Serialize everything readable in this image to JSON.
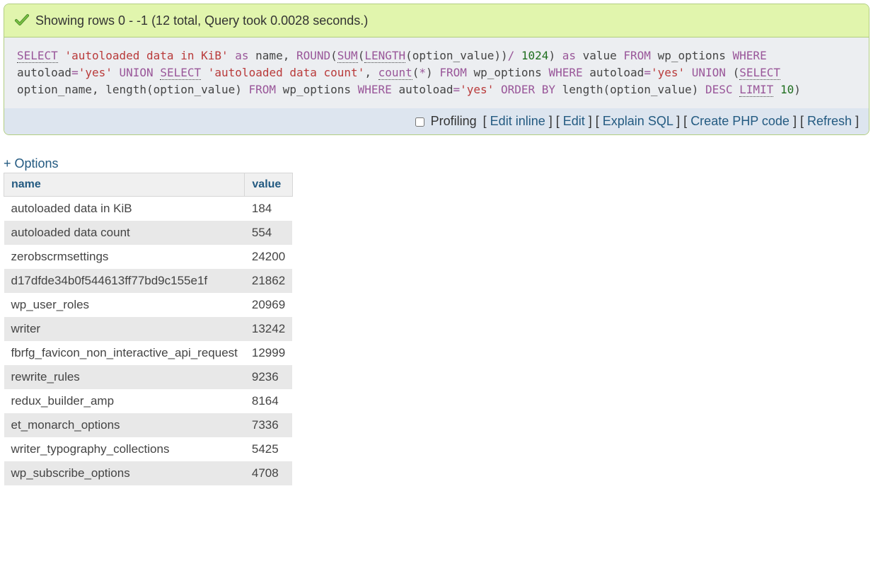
{
  "banner": {
    "text": "Showing rows 0 - -1 (12 total, Query took 0.0028 seconds.)"
  },
  "sql": {
    "tokens": [
      {
        "t": "func",
        "v": "SELECT"
      },
      {
        "t": "",
        "v": " "
      },
      {
        "t": "str",
        "v": "'autoloaded data in KiB'"
      },
      {
        "t": "",
        "v": " "
      },
      {
        "t": "kw",
        "v": "as"
      },
      {
        "t": "",
        "v": " name, "
      },
      {
        "t": "kw",
        "v": "ROUND"
      },
      {
        "t": "",
        "v": "("
      },
      {
        "t": "func",
        "v": "SUM"
      },
      {
        "t": "",
        "v": "("
      },
      {
        "t": "func",
        "v": "LENGTH"
      },
      {
        "t": "",
        "v": "(option_value))"
      },
      {
        "t": "kw",
        "v": "/"
      },
      {
        "t": "",
        "v": " "
      },
      {
        "t": "col",
        "v": "1024"
      },
      {
        "t": "",
        "v": ") "
      },
      {
        "t": "kw",
        "v": "as"
      },
      {
        "t": "",
        "v": " value "
      },
      {
        "t": "kw",
        "v": "FROM"
      },
      {
        "t": "",
        "v": " wp_options "
      },
      {
        "t": "kw",
        "v": "WHERE"
      },
      {
        "t": "",
        "v": " autoload"
      },
      {
        "t": "kw",
        "v": "="
      },
      {
        "t": "str",
        "v": "'yes'"
      },
      {
        "t": "",
        "v": " "
      },
      {
        "t": "kw",
        "v": "UNION"
      },
      {
        "t": "",
        "v": " "
      },
      {
        "t": "func",
        "v": "SELECT"
      },
      {
        "t": "",
        "v": " "
      },
      {
        "t": "str",
        "v": "'autoloaded data count'"
      },
      {
        "t": "",
        "v": ", "
      },
      {
        "t": "func",
        "v": "count"
      },
      {
        "t": "",
        "v": "("
      },
      {
        "t": "kw",
        "v": "*"
      },
      {
        "t": "",
        "v": ") "
      },
      {
        "t": "kw",
        "v": "FROM"
      },
      {
        "t": "",
        "v": " wp_options "
      },
      {
        "t": "kw",
        "v": "WHERE"
      },
      {
        "t": "",
        "v": " autoload"
      },
      {
        "t": "kw",
        "v": "="
      },
      {
        "t": "str",
        "v": "'yes'"
      },
      {
        "t": "",
        "v": " "
      },
      {
        "t": "kw",
        "v": "UNION"
      },
      {
        "t": "",
        "v": " ("
      },
      {
        "t": "func",
        "v": "SELECT"
      },
      {
        "t": "",
        "v": " option_name, length(option_value) "
      },
      {
        "t": "kw",
        "v": "FROM"
      },
      {
        "t": "",
        "v": " wp_options "
      },
      {
        "t": "kw",
        "v": "WHERE"
      },
      {
        "t": "",
        "v": " autoload"
      },
      {
        "t": "kw",
        "v": "="
      },
      {
        "t": "str",
        "v": "'yes'"
      },
      {
        "t": "",
        "v": " "
      },
      {
        "t": "kw",
        "v": "ORDER BY"
      },
      {
        "t": "",
        "v": " length(option_value) "
      },
      {
        "t": "kw",
        "v": "DESC"
      },
      {
        "t": "",
        "v": " "
      },
      {
        "t": "func",
        "v": "LIMIT"
      },
      {
        "t": "",
        "v": " "
      },
      {
        "t": "col",
        "v": "10"
      },
      {
        "t": "",
        "v": ")"
      }
    ]
  },
  "toolbar": {
    "profiling_label": "Profiling",
    "links": {
      "edit_inline": "Edit inline",
      "edit": "Edit",
      "explain": "Explain SQL",
      "create_php": "Create PHP code",
      "refresh": "Refresh"
    }
  },
  "options_link": "+ Options",
  "table": {
    "columns": [
      "name",
      "value"
    ],
    "rows": [
      [
        "autoloaded data in KiB",
        "184"
      ],
      [
        "autoloaded data count",
        "554"
      ],
      [
        "zerobscrmsettings",
        "24200"
      ],
      [
        "d17dfde34b0f544613ff77bd9c155e1f",
        "21862"
      ],
      [
        "wp_user_roles",
        "20969"
      ],
      [
        "writer",
        "13242"
      ],
      [
        "fbrfg_favicon_non_interactive_api_request",
        "12999"
      ],
      [
        "rewrite_rules",
        "9236"
      ],
      [
        "redux_builder_amp",
        "8164"
      ],
      [
        "et_monarch_options",
        "7336"
      ],
      [
        "writer_typography_collections",
        "5425"
      ],
      [
        "wp_subscribe_options",
        "4708"
      ]
    ]
  },
  "colors": {
    "link": "#235a81",
    "banner_bg": "#e1f5ad",
    "banner_border": "#b2ce81",
    "row_odd": "#e8e8e8",
    "row_even": "#ffffff"
  }
}
